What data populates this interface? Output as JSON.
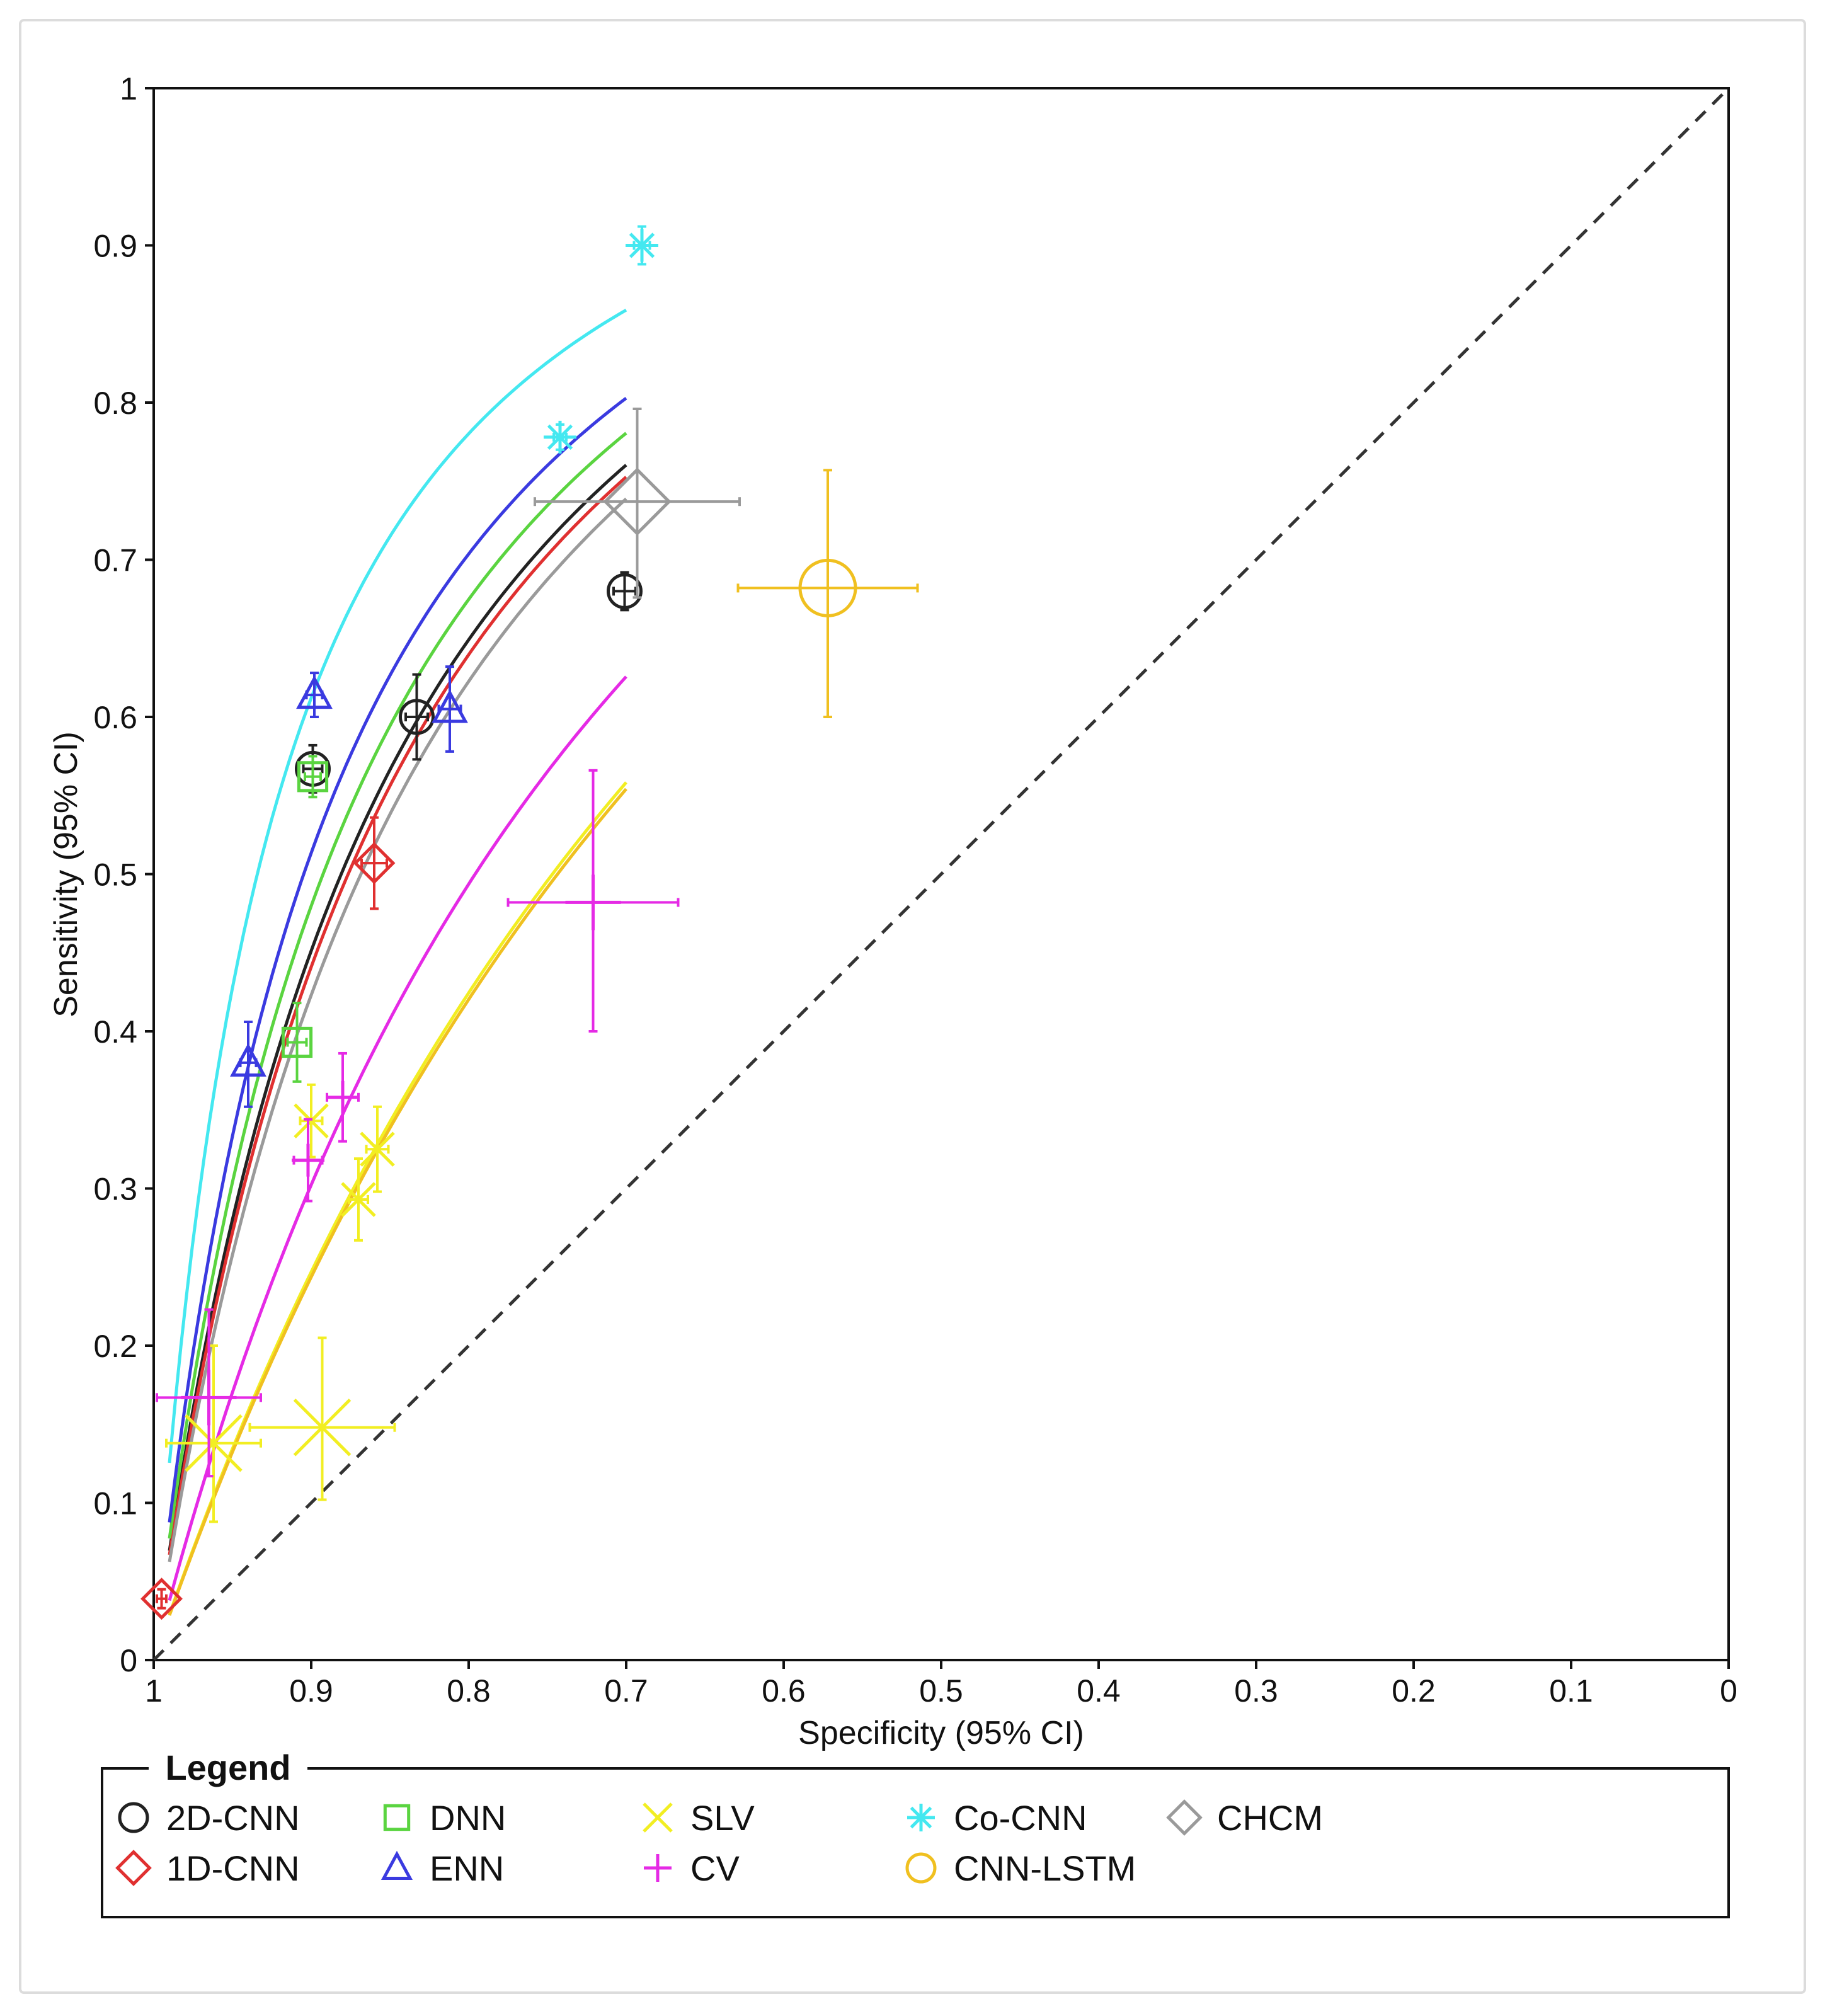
{
  "chart_data": {
    "type": "scatter",
    "title": "",
    "xlabel": "Specificity (95% CI)",
    "ylabel": "Sensitivity (95% CI)",
    "xlim": [
      1,
      0
    ],
    "ylim": [
      0,
      1
    ],
    "x_ticks": [
      "1",
      "0.9",
      "0.8",
      "0.7",
      "0.6",
      "0.5",
      "0.4",
      "0.3",
      "0.2",
      "0.1",
      "0"
    ],
    "y_ticks": [
      "0",
      "0.1",
      "0.2",
      "0.3",
      "0.4",
      "0.5",
      "0.6",
      "0.7",
      "0.8",
      "0.9",
      "1"
    ],
    "reference_line": "chance diagonal (dashed)",
    "legend_title": "Legend",
    "legend_position": "bottom",
    "series": [
      {
        "name": "2D-CNN",
        "marker": "circle",
        "color": "#222222",
        "points": [
          {
            "spec": 0.899,
            "sens": 0.567,
            "spec_ci": [
              0.893,
              0.905
            ],
            "sens_ci": [
              0.552,
              0.582
            ]
          },
          {
            "spec": 0.833,
            "sens": 0.6,
            "spec_ci": [
              0.826,
              0.84
            ],
            "sens_ci": [
              0.573,
              0.627
            ]
          },
          {
            "spec": 0.701,
            "sens": 0.68,
            "spec_ci": [
              0.694,
              0.708
            ],
            "sens_ci": [
              0.668,
              0.692
            ]
          }
        ],
        "curve": {
          "dor": 7.4,
          "spec_range": [
            0.99,
            0.7
          ]
        }
      },
      {
        "name": "1D-CNN",
        "marker": "diamond",
        "color": "#e03030",
        "points": [
          {
            "spec": 0.995,
            "sens": 0.039,
            "spec_ci": [
              0.992,
              0.998
            ],
            "sens_ci": [
              0.033,
              0.045
            ]
          },
          {
            "spec": 0.86,
            "sens": 0.507,
            "spec_ci": [
              0.852,
              0.868
            ],
            "sens_ci": [
              0.478,
              0.536
            ]
          }
        ],
        "curve": {
          "dor": 7.1,
          "spec_range": [
            0.99,
            0.7
          ]
        }
      },
      {
        "name": "DNN",
        "marker": "square",
        "color": "#5ad440",
        "points": [
          {
            "spec": 0.909,
            "sens": 0.393,
            "spec_ci": [
              0.903,
              0.915
            ],
            "sens_ci": [
              0.368,
              0.418
            ]
          },
          {
            "spec": 0.899,
            "sens": 0.562,
            "spec_ci": [
              0.894,
              0.904
            ],
            "sens_ci": [
              0.549,
              0.575
            ]
          }
        ],
        "curve": {
          "dor": 8.3,
          "spec_range": [
            0.99,
            0.7
          ]
        }
      },
      {
        "name": "ENN",
        "marker": "triangle",
        "color": "#3a3ae0",
        "points": [
          {
            "spec": 0.94,
            "sens": 0.38,
            "spec_ci": [
              0.935,
              0.945
            ],
            "sens_ci": [
              0.352,
              0.406
            ]
          },
          {
            "spec": 0.898,
            "sens": 0.614,
            "spec_ci": [
              0.893,
              0.903
            ],
            "sens_ci": [
              0.6,
              0.628
            ]
          },
          {
            "spec": 0.812,
            "sens": 0.605,
            "spec_ci": [
              0.805,
              0.819
            ],
            "sens_ci": [
              0.578,
              0.632
            ]
          }
        ],
        "curve": {
          "dor": 9.5,
          "spec_range": [
            0.99,
            0.7
          ]
        }
      },
      {
        "name": "SLV",
        "marker": "x",
        "color": "#f2ee22",
        "points": [
          {
            "spec": 0.962,
            "sens": 0.138,
            "spec_ci": [
              0.932,
              0.992
            ],
            "sens_ci": [
              0.088,
              0.2
            ]
          },
          {
            "spec": 0.893,
            "sens": 0.148,
            "spec_ci": [
              0.847,
              0.939
            ],
            "sens_ci": [
              0.102,
              0.205
            ]
          },
          {
            "spec": 0.9,
            "sens": 0.343,
            "spec_ci": [
              0.893,
              0.907
            ],
            "sens_ci": [
              0.32,
              0.366
            ]
          },
          {
            "spec": 0.858,
            "sens": 0.325,
            "spec_ci": [
              0.851,
              0.865
            ],
            "sens_ci": [
              0.298,
              0.352
            ]
          },
          {
            "spec": 0.87,
            "sens": 0.293,
            "spec_ci": [
              0.864,
              0.876
            ],
            "sens_ci": [
              0.267,
              0.319
            ]
          }
        ],
        "curve": {
          "dor": 2.95,
          "spec_range": [
            0.99,
            0.7
          ]
        }
      },
      {
        "name": "CV",
        "marker": "plus",
        "color": "#e52ae5",
        "points": [
          {
            "spec": 0.965,
            "sens": 0.167,
            "spec_ci": [
              0.932,
              0.998
            ],
            "sens_ci": [
              0.117,
              0.223
            ]
          },
          {
            "spec": 0.88,
            "sens": 0.358,
            "spec_ci": [
              0.87,
              0.89
            ],
            "sens_ci": [
              0.33,
              0.386
            ]
          },
          {
            "spec": 0.902,
            "sens": 0.318,
            "spec_ci": [
              0.893,
              0.911
            ],
            "sens_ci": [
              0.292,
              0.344
            ]
          },
          {
            "spec": 0.721,
            "sens": 0.482,
            "spec_ci": [
              0.667,
              0.775
            ],
            "sens_ci": [
              0.4,
              0.566
            ]
          }
        ],
        "curve": {
          "dor": 3.9,
          "spec_range": [
            0.99,
            0.7
          ]
        }
      },
      {
        "name": "Co-CNN",
        "marker": "asterisk",
        "color": "#44e8f0",
        "points": [
          {
            "spec": 0.742,
            "sens": 0.778,
            "spec_ci": [
              0.738,
              0.746
            ],
            "sens_ci": [
              0.77,
              0.786
            ]
          },
          {
            "spec": 0.69,
            "sens": 0.9,
            "spec_ci": [
              0.685,
              0.695
            ],
            "sens_ci": [
              0.888,
              0.912
            ]
          }
        ],
        "curve": {
          "dor": 14.2,
          "spec_range": [
            0.99,
            0.7
          ]
        }
      },
      {
        "name": "CNN-LSTM",
        "marker": "circle",
        "color": "#f0c020",
        "points": [
          {
            "spec": 0.572,
            "sens": 0.682,
            "spec_ci": [
              0.515,
              0.629
            ],
            "sens_ci": [
              0.6,
              0.757
            ]
          }
        ],
        "curve": {
          "dor": 2.9,
          "spec_range": [
            0.99,
            0.7
          ]
        }
      },
      {
        "name": "CHCM",
        "marker": "diamond",
        "color": "#9a9a9a",
        "points": [
          {
            "spec": 0.693,
            "sens": 0.737,
            "spec_ci": [
              0.628,
              0.758
            ],
            "sens_ci": [
              0.676,
              0.796
            ]
          }
        ],
        "curve": {
          "dor": 6.6,
          "spec_range": [
            0.99,
            0.7
          ]
        }
      }
    ]
  }
}
